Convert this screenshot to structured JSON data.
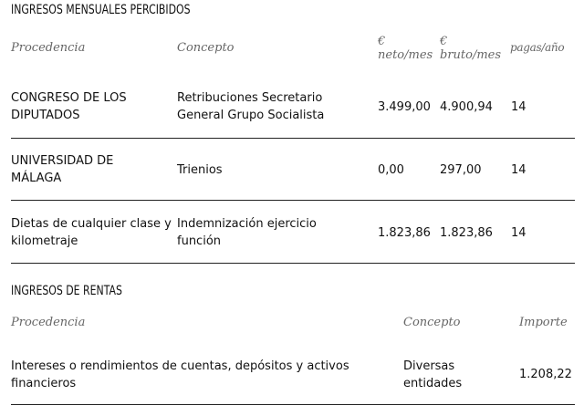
{
  "mensuales": {
    "title": "INGRESOS MENSUALES PERCIBIDOS",
    "headers": {
      "procedencia": "Procedencia",
      "concepto": "Concepto",
      "neto_sym": "€",
      "neto_label": "neto/mes",
      "bruto_sym": "€",
      "bruto_label": "bruto/mes",
      "pagas": "pagas/año"
    },
    "rows": [
      {
        "procedencia": "CONGRESO DE LOS DIPUTADOS",
        "concepto": "Retribuciones Secretario General Grupo Socialista",
        "neto": "3.499,00",
        "bruto": "4.900,94",
        "pagas": "14"
      },
      {
        "procedencia": "UNIVERSIDAD DE MÁLAGA",
        "concepto": "Trienios",
        "neto": "0,00",
        "bruto": "297,00",
        "pagas": "14"
      },
      {
        "procedencia": "Dietas de cualquier clase y kilometraje",
        "concepto": "Indemnización ejercicio función",
        "neto": "1.823,86",
        "bruto": "1.823,86",
        "pagas": "14"
      }
    ]
  },
  "rentas": {
    "title": "INGRESOS DE RENTAS",
    "headers": {
      "procedencia": "Procedencia",
      "concepto": "Concepto",
      "importe": "Importe"
    },
    "rows": [
      {
        "procedencia": "Intereses o rendimientos de cuentas, depósitos y activos financieros",
        "concepto": "Diversas entidades",
        "importe": "1.208,22"
      }
    ]
  }
}
